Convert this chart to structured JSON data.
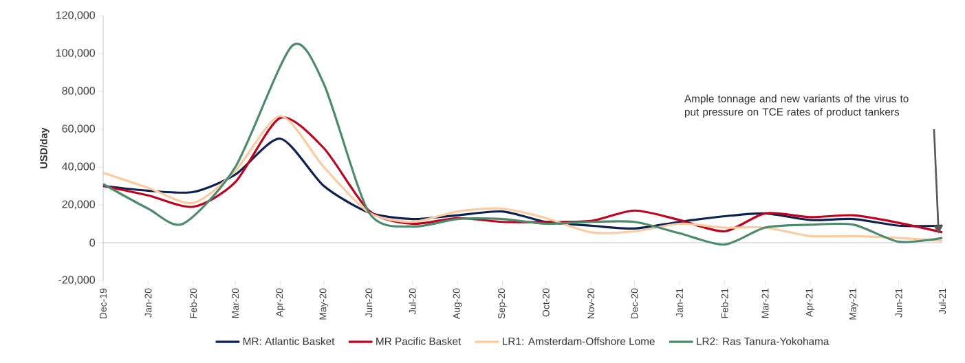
{
  "chart_data": {
    "type": "line",
    "ylabel": "USD/day",
    "x": [
      "2019-12",
      "2020-01",
      "2020-02",
      "2020-03",
      "2020-04",
      "2020-05",
      "2020-06",
      "2020-07",
      "2020-08",
      "2020-09",
      "2020-10",
      "2020-11",
      "2020-12",
      "2021-01",
      "2021-02",
      "2021-03",
      "2021-04",
      "2021-05",
      "2021-06",
      "2021-07"
    ],
    "series": [
      {
        "name": "MR: Atlantic Basket",
        "color": "#0b2151",
        "values": [
          30000,
          27500,
          26800,
          36000,
          55000,
          30000,
          16000,
          12500,
          14500,
          16500,
          11000,
          9000,
          7500,
          11000,
          14000,
          15500,
          12000,
          12500,
          9000,
          9000
        ]
      },
      {
        "name": "MR Pacific Basket",
        "color": "#c0001e",
        "values": [
          30000,
          25000,
          19000,
          32000,
          66000,
          50000,
          17000,
          10000,
          13000,
          11000,
          11000,
          11500,
          17000,
          12000,
          6000,
          15500,
          13500,
          14500,
          10500,
          5500
        ]
      },
      {
        "name": "LR1: Amsterdam-Offshore Lome",
        "color": "#fccca0",
        "values": [
          37000,
          29000,
          21000,
          38000,
          67000,
          40000,
          16000,
          11000,
          16500,
          18000,
          13000,
          5500,
          6000,
          10000,
          8000,
          8000,
          3500,
          3500,
          2500,
          1000
        ]
      },
      {
        "name": "LR2: Ras Tanura-Yokohama",
        "color": "#4b8b6b",
        "x": [
          "2019-12",
          "2020-01",
          "2020-01-25",
          "2020-03",
          "2020-04-09",
          "2020-05",
          "2020-06",
          "2020-07",
          "2020-08",
          "2020-09",
          "2020-10",
          "2020-11",
          "2020-12",
          "2021-01",
          "2021-02",
          "2021-03",
          "2021-04",
          "2021-05",
          "2021-06",
          "2021-07"
        ],
        "values": [
          31000,
          18000,
          10000,
          40000,
          104000,
          84000,
          16000,
          8500,
          12500,
          12500,
          10000,
          11000,
          11000,
          5000,
          -1000,
          8000,
          9500,
          9500,
          500,
          2500
        ]
      }
    ],
    "xlim": [
      "2019-12",
      "2021-07"
    ],
    "xticks": [
      {
        "value": "2019-12",
        "label": "Dec-19"
      },
      {
        "value": "2020-01",
        "label": "Jan-20"
      },
      {
        "value": "2020-02",
        "label": "Feb-20"
      },
      {
        "value": "2020-03",
        "label": "Mar-20"
      },
      {
        "value": "2020-04",
        "label": "Apr-20"
      },
      {
        "value": "2020-05",
        "label": "May-20"
      },
      {
        "value": "2020-06",
        "label": "Jun-20"
      },
      {
        "value": "2020-07",
        "label": "Jul-20"
      },
      {
        "value": "2020-08",
        "label": "Aug-20"
      },
      {
        "value": "2020-09",
        "label": "Sep-20"
      },
      {
        "value": "2020-10",
        "label": "Oct-20"
      },
      {
        "value": "2020-11",
        "label": "Nov-20"
      },
      {
        "value": "2020-12",
        "label": "Dec-20"
      },
      {
        "value": "2021-01",
        "label": "Jan-21"
      },
      {
        "value": "2021-02",
        "label": "Feb-21"
      },
      {
        "value": "2021-03",
        "label": "Mar-21"
      },
      {
        "value": "2021-04",
        "label": "Apr-21"
      },
      {
        "value": "2021-05",
        "label": "May-21"
      },
      {
        "value": "2021-06",
        "label": "Jun-21"
      },
      {
        "value": "2021-07",
        "label": "Jul-21"
      }
    ],
    "ylim": [
      -20000,
      120000
    ],
    "yticks": [
      {
        "value": -20000,
        "label": "-20,000"
      },
      {
        "value": 0,
        "label": "0"
      },
      {
        "value": 20000,
        "label": "20,000"
      },
      {
        "value": 40000,
        "label": "40,000"
      },
      {
        "value": 60000,
        "label": "60,000"
      },
      {
        "value": 80000,
        "label": "80,000"
      },
      {
        "value": 100000,
        "label": "100,000"
      },
      {
        "value": 120000,
        "label": "120,000"
      }
    ],
    "legend": "bottom",
    "annotations": [
      "Ample tonnage and new variants of the virus to put pressure on TCE rates of product tankers"
    ]
  }
}
